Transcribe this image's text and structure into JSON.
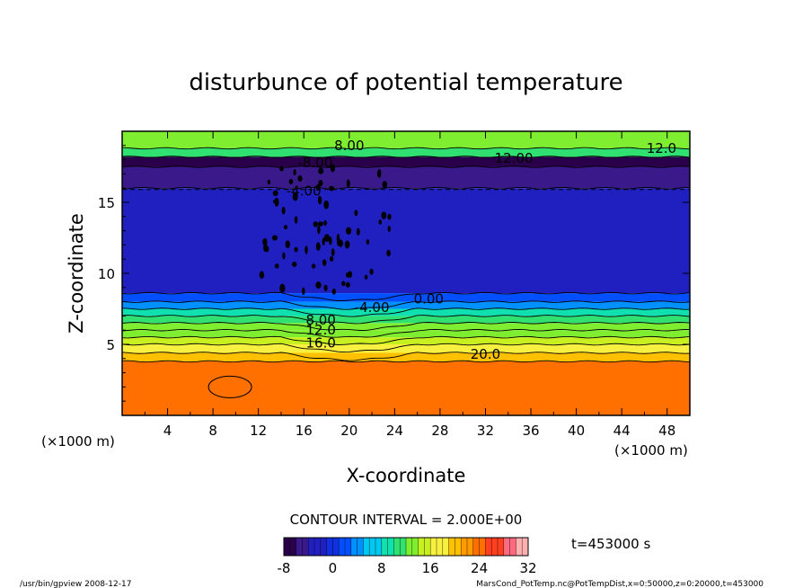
{
  "chart_data": {
    "type": "heatmap",
    "title": "disturbunce of potential temperature",
    "xlabel": "X-coordinate",
    "ylabel": "Z-coordinate",
    "x_unit_left": "(×1000 m)",
    "x_unit_right": "(×1000 m)",
    "xlim": [
      0,
      50
    ],
    "ylim": [
      0,
      20
    ],
    "x_ticks": [
      "4",
      "8",
      "12",
      "16",
      "20",
      "24",
      "28",
      "32",
      "36",
      "40",
      "44",
      "48"
    ],
    "y_ticks": [
      "5",
      "10",
      "15"
    ],
    "contour_interval_text": "CONTOUR INTERVAL = 2.000E+00",
    "time_text": "t=453000 s",
    "colorbar": {
      "min": -8,
      "max": 32,
      "tick_labels": [
        "-8",
        "0",
        "8",
        "16",
        "24",
        "32"
      ]
    },
    "contour_labels": [
      {
        "text": "8.00",
        "x": 20.0,
        "z": 19.0
      },
      {
        "text": "12.0",
        "x": 47.5,
        "z": 18.8
      },
      {
        "text": "12.00",
        "x": 34.5,
        "z": 18.1
      },
      {
        "text": "-8.00",
        "x": 17.0,
        "z": 17.8
      },
      {
        "text": "-4.00",
        "x": 16.0,
        "z": 15.8
      },
      {
        "text": "0.00",
        "x": 27.0,
        "z": 8.2
      },
      {
        "text": "-4.00",
        "x": 22.0,
        "z": 7.6
      },
      {
        "text": "8.00",
        "x": 17.5,
        "z": 6.7
      },
      {
        "text": "12.0",
        "x": 17.5,
        "z": 6.0
      },
      {
        "text": "16.0",
        "x": 17.5,
        "z": 5.1
      },
      {
        "text": "20.0",
        "x": 32.0,
        "z": 4.3
      }
    ],
    "field_bands": [
      {
        "z_from": 0.0,
        "z_to": 3.8,
        "value": 24
      },
      {
        "z_from": 3.8,
        "z_to": 4.4,
        "value": 20
      },
      {
        "z_from": 4.4,
        "z_to": 5.0,
        "value": 18
      },
      {
        "z_from": 5.0,
        "z_to": 5.5,
        "value": 16
      },
      {
        "z_from": 5.5,
        "z_to": 6.0,
        "value": 14
      },
      {
        "z_from": 6.0,
        "z_to": 6.5,
        "value": 12
      },
      {
        "z_from": 6.5,
        "z_to": 7.0,
        "value": 10
      },
      {
        "z_from": 7.0,
        "z_to": 7.5,
        "value": 8
      },
      {
        "z_from": 7.5,
        "z_to": 8.0,
        "value": 5
      },
      {
        "z_from": 8.0,
        "z_to": 8.6,
        "value": 2
      },
      {
        "z_from": 8.6,
        "z_to": 16.0,
        "value": -3
      },
      {
        "z_from": 16.0,
        "z_to": 17.5,
        "value": -4
      },
      {
        "z_from": 17.5,
        "z_to": 18.2,
        "value": -7
      },
      {
        "z_from": 18.2,
        "z_to": 18.8,
        "value": 10
      },
      {
        "z_from": 18.8,
        "z_to": 20.0,
        "value": 12
      }
    ]
  },
  "footer": {
    "left_text": "/usr/bin/gpview   2008-12-17",
    "right_text": "MarsCond_PotTemp.nc@PotTempDist,x=0:50000,z=0:20000,t=453000"
  },
  "colors": {
    "ramp": [
      "#2a004a",
      "#3a1a8a",
      "#2020c0",
      "#1030e0",
      "#0050ff",
      "#0090ff",
      "#00c8f0",
      "#10e0b0",
      "#30e070",
      "#80ee30",
      "#c8f020",
      "#f8f040",
      "#ffc000",
      "#ff9a00",
      "#ff7000",
      "#ff4020",
      "#ff6a80",
      "#ffb0b0"
    ]
  }
}
